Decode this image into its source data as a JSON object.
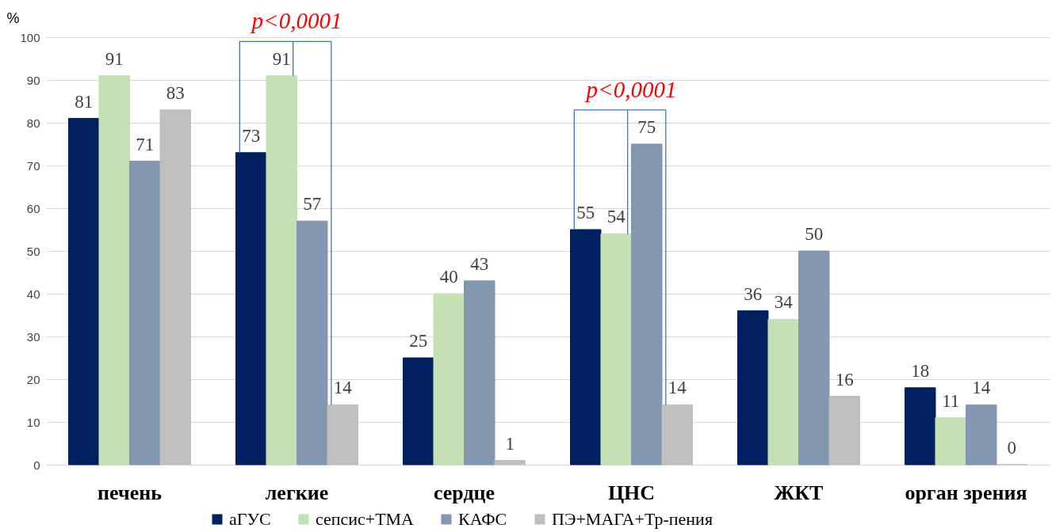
{
  "chart_data": {
    "type": "bar",
    "ylabel": "%",
    "categories": [
      "печень",
      "легкие",
      "сердце",
      "ЦНС",
      "ЖКТ",
      "орган зрения"
    ],
    "series": [
      {
        "name": "аГУС",
        "color": "#002060",
        "values": [
          81,
          73,
          25,
          55,
          36,
          18
        ]
      },
      {
        "name": "сепсис+ТМА",
        "color": "#c5e0b4",
        "values": [
          91,
          91,
          40,
          54,
          34,
          11
        ]
      },
      {
        "name": "КАФС",
        "color": "#8497b0",
        "values": [
          71,
          57,
          43,
          75,
          50,
          14
        ]
      },
      {
        "name": "ПЭ+МАГА+Тр-пения",
        "color": "#bfbfbf",
        "values": [
          83,
          14,
          1,
          14,
          16,
          0
        ]
      }
    ],
    "ylim": [
      0,
      100
    ],
    "yticks": [
      0,
      10,
      20,
      30,
      40,
      50,
      60,
      70,
      80,
      90,
      100
    ],
    "grid": "y",
    "legend": "bottom",
    "data_labels": true,
    "annotations": [
      "p<0,0001",
      "p<0,0001"
    ]
  }
}
